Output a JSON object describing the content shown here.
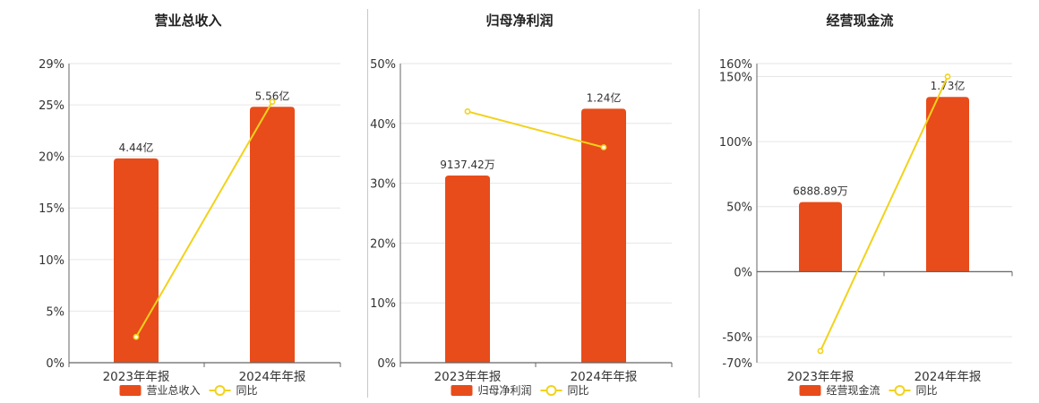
{
  "colors": {
    "bar": "#e84c1a",
    "line": "#f2d21b",
    "grid": "#e6e6e6",
    "axis": "#666666"
  },
  "legend_line_label": "同比",
  "chart_data": [
    {
      "type": "bar",
      "title": "营业总收入",
      "categories": [
        "2023年年报",
        "2024年年报"
      ],
      "series": [
        {
          "name": "营业总收入",
          "type": "bar",
          "values": [
            4.44,
            5.56
          ],
          "unit": "亿",
          "labels": [
            "4.44亿",
            "5.56亿"
          ]
        },
        {
          "name": "同比",
          "type": "line",
          "values": [
            2.5,
            25.3
          ],
          "unit": "%"
        }
      ],
      "bar_axis_max": 6.5,
      "yaxis": {
        "min": 0,
        "max": 29,
        "ticks": [
          0,
          5,
          10,
          15,
          20,
          25,
          29
        ],
        "tick_labels": [
          "0%",
          "5%",
          "10%",
          "15%",
          "20%",
          "25%",
          "29%"
        ]
      },
      "legend": "bottom"
    },
    {
      "type": "bar",
      "title": "归母净利润",
      "categories": [
        "2023年年报",
        "2024年年报"
      ],
      "series": [
        {
          "name": "归母净利润",
          "type": "bar",
          "values": [
            0.913742,
            1.24
          ],
          "unit": "亿",
          "labels": [
            "9137.42万",
            "1.24亿"
          ]
        },
        {
          "name": "同比",
          "type": "line",
          "values": [
            42,
            36
          ],
          "unit": "%"
        }
      ],
      "bar_axis_max": 1.46,
      "yaxis": {
        "min": 0,
        "max": 50,
        "ticks": [
          0,
          10,
          20,
          30,
          40,
          50
        ],
        "tick_labels": [
          "0%",
          "10%",
          "20%",
          "30%",
          "40%",
          "50%"
        ]
      },
      "legend": "bottom"
    },
    {
      "type": "bar",
      "title": "经营现金流",
      "categories": [
        "2023年年报",
        "2024年年报"
      ],
      "series": [
        {
          "name": "经营现金流",
          "type": "bar",
          "values": [
            0.688889,
            1.73
          ],
          "unit": "亿",
          "labels": [
            "6888.89万",
            "1.73亿"
          ]
        },
        {
          "name": "同比",
          "type": "line",
          "values": [
            -61,
            150
          ],
          "unit": "%"
        }
      ],
      "bar_axis_max": 2.06,
      "yaxis": {
        "min": -70,
        "max": 160,
        "ticks": [
          -70,
          -50,
          0,
          50,
          100,
          150,
          160
        ],
        "tick_labels": [
          "-70%",
          "-50%",
          "0%",
          "50%",
          "100%",
          "150%",
          "160%"
        ]
      },
      "legend": "bottom"
    }
  ]
}
